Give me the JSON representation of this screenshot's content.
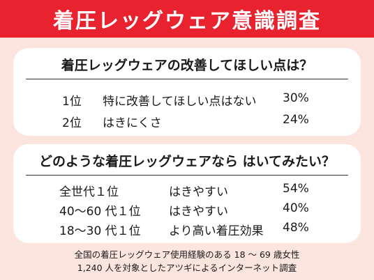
{
  "title": "着圧レッグウェア意識調査",
  "section1": {
    "question": "着圧レッグウェアの改善してほしい点は？",
    "rows": [
      {
        "rank": "1位",
        "answer": "特に改善してほしい点はない",
        "percent": "30%"
      },
      {
        "rank": "2位",
        "answer": "はきにくさ",
        "percent": "24%"
      }
    ]
  },
  "section2": {
    "question": "どのような着圧レッグウェアなら はいてみたい？",
    "rows": [
      {
        "rank": "全世代１位",
        "answer": "はきやすい",
        "percent": "54%"
      },
      {
        "rank": "40～60 代１位",
        "answer": "はきやすい",
        "percent": "40%"
      },
      {
        "rank": "18～30 代１位",
        "answer": "より高い着圧効果",
        "percent": "48%"
      }
    ]
  },
  "footnote": {
    "line1": "全国の着圧レッグウェア使用経験のある 18 ～ 69 歳女性",
    "line2": "1,240 人を対象としたアツギによるインターネット調査"
  },
  "colors": {
    "header_bg": "#e8222e",
    "page_bg": "#fce4df",
    "card_bg": "#ffffff"
  }
}
